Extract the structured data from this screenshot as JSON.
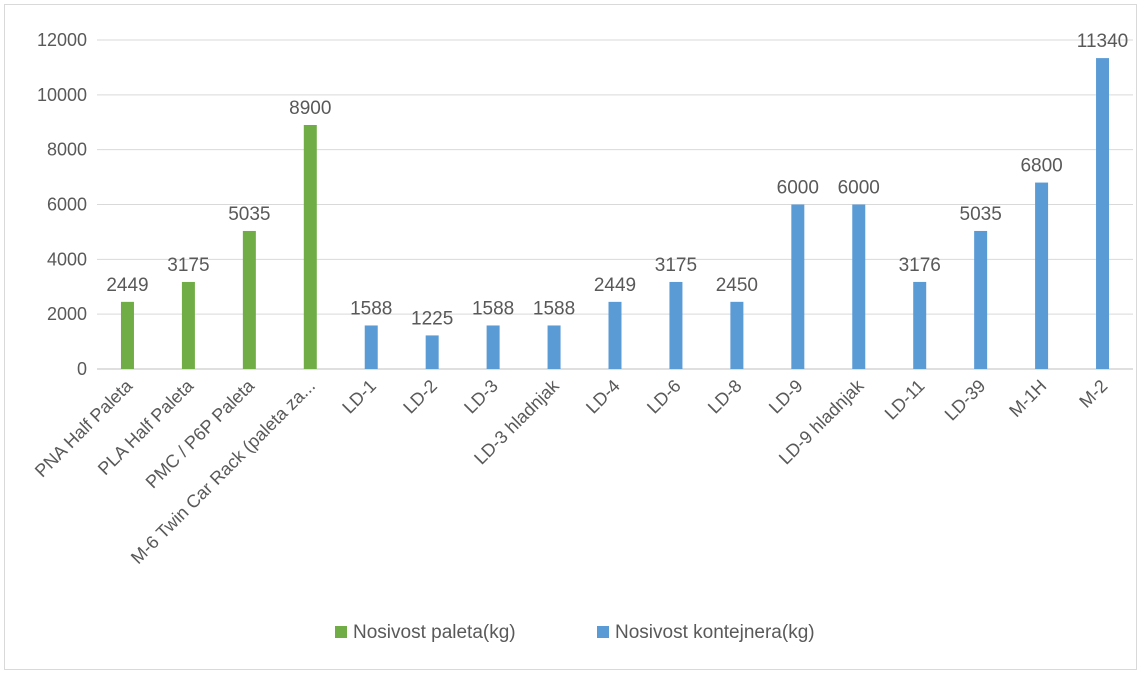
{
  "chart_data": {
    "type": "bar",
    "title": "",
    "xlabel": "",
    "ylabel": "",
    "ylim": [
      0,
      12000
    ],
    "yticks": [
      0,
      2000,
      4000,
      6000,
      8000,
      10000,
      12000
    ],
    "grid": true,
    "legend_position": "bottom",
    "categories": [
      "PNA Half Paleta",
      "PLA Half Paleta",
      "PMC / P6P Paleta",
      "M-6 Twin Car Rack (paleta za...",
      "LD-1",
      "LD-2",
      "LD-3",
      "LD-3 hladnjak",
      "LD-4",
      "LD-6",
      "LD-8",
      "LD-9",
      "LD-9 hladnjak",
      "LD-11",
      "LD-39",
      "M-1H",
      "M-2"
    ],
    "series": [
      {
        "name": "Nosivost paleta(kg)",
        "color": "#70ad47",
        "values": [
          2449,
          3175,
          5035,
          8900,
          null,
          null,
          null,
          null,
          null,
          null,
          null,
          null,
          null,
          null,
          null,
          null,
          null
        ]
      },
      {
        "name": "Nosivost kontejnera(kg)",
        "color": "#5b9bd5",
        "values": [
          null,
          null,
          null,
          null,
          1588,
          1225,
          1588,
          1588,
          2449,
          3175,
          2450,
          6000,
          6000,
          3176,
          5035,
          6800,
          11340
        ]
      }
    ]
  }
}
